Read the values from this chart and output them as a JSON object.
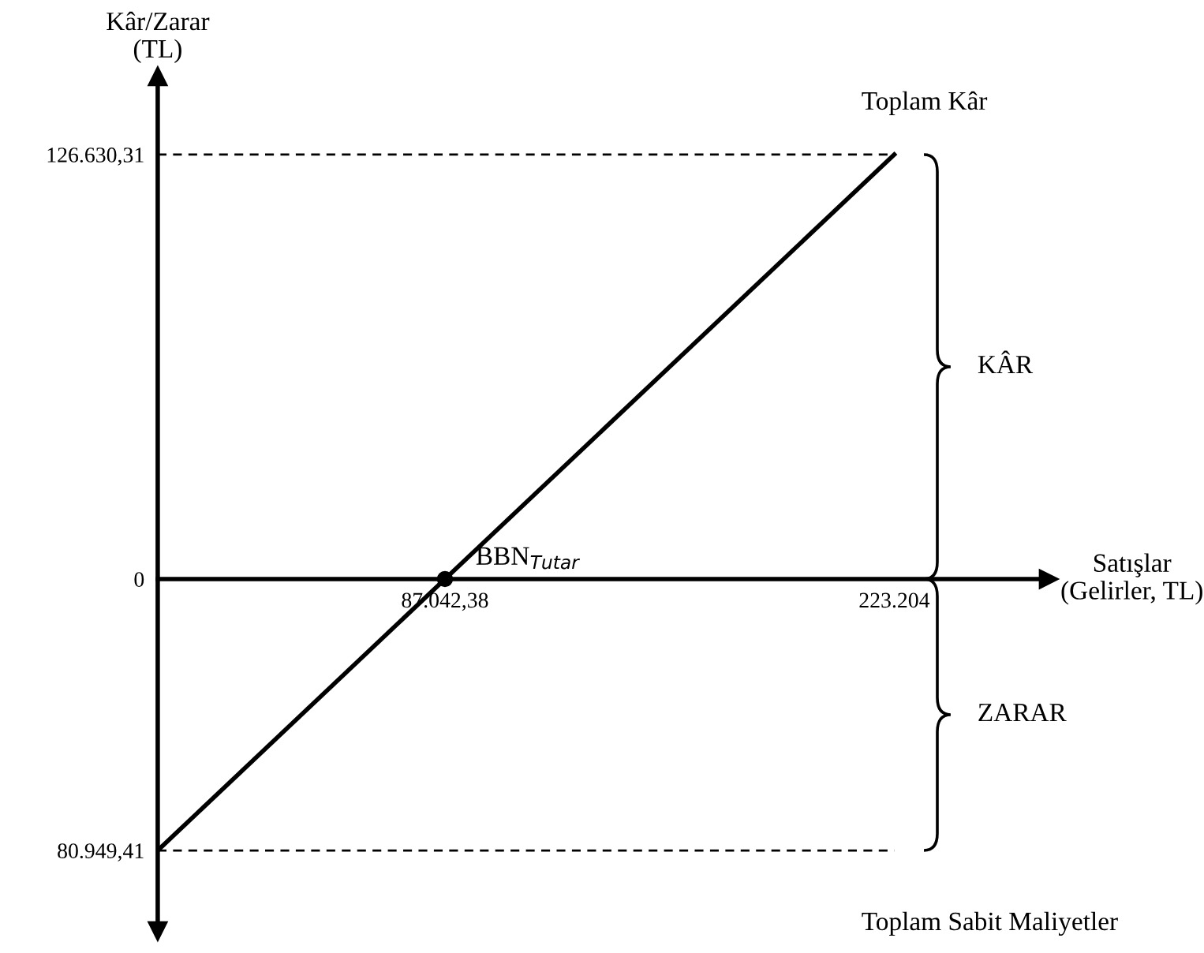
{
  "chart_data": {
    "type": "line",
    "xlabel": "Satışlar\n(Gelirler, TL)",
    "ylabel": "Kâr/Zarar\n(TL)",
    "x": [
      0,
      223204
    ],
    "series": [
      {
        "color": "#000000",
        "values": [
          -80949.41,
          126630.31
        ]
      },
      {
        "type": "scatter",
        "color": "#000000",
        "x": [
          87042.38
        ],
        "values": [
          0
        ]
      }
    ],
    "xlim": [
      0,
      270000
    ],
    "ylim": [
      -105000,
      150000
    ],
    "xticks": [
      {
        "value": 87042.38,
        "label": "87.042,38"
      },
      {
        "value": 223204,
        "label": "223.204"
      }
    ],
    "yticks": [
      {
        "value": 126630.31,
        "label": "126.630,31"
      },
      0,
      {
        "value": -80949.41,
        "label": "80.949,41"
      }
    ],
    "ref_lines": [
      {
        "axis": "y",
        "value": 126630.31,
        "line_style": "dashed",
        "color": "#000000"
      },
      {
        "axis": "y",
        "value": -80949.41,
        "line_style": "dashed",
        "color": "#000000"
      }
    ],
    "annotations": [
      "KÂR",
      "ZARAR",
      "Toplam Kâr",
      "Toplam Sabit Maliyetler",
      {
        "text": "BBN$_{Tutar}$",
        "x": 87042.38,
        "y": 0
      }
    ],
    "grid": false
  }
}
